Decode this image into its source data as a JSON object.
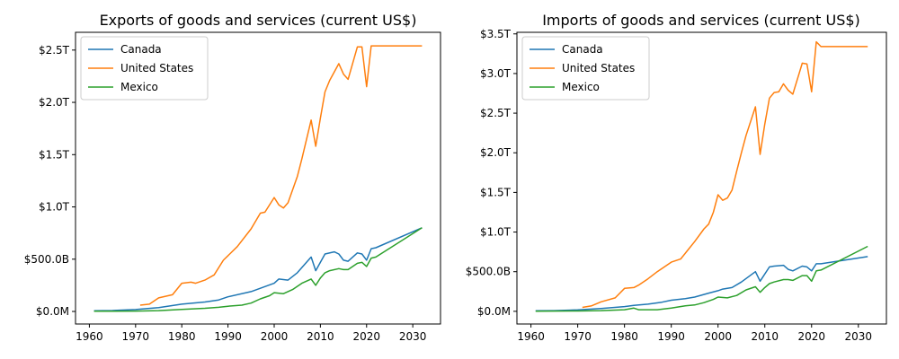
{
  "chart_data": [
    {
      "type": "line",
      "title": "Exports of goods and services (current US$)",
      "xlabel": "",
      "ylabel": "",
      "xlim": [
        1957,
        2036
      ],
      "ylim": [
        -0.12,
        2.67
      ],
      "xticks": [
        1960,
        1970,
        1980,
        1990,
        2000,
        2010,
        2020,
        2030
      ],
      "xtick_labels": [
        "1960",
        "1970",
        "1980",
        "1990",
        "2000",
        "2010",
        "2020",
        "2030"
      ],
      "yticks": [
        0,
        0.5,
        1.0,
        1.5,
        2.0,
        2.5
      ],
      "ytick_labels": [
        "$0.0M",
        "$500.0B",
        "$1.0T",
        "$1.5T",
        "$2.0T",
        "$2.5T"
      ],
      "y_unit": "trillions of US$",
      "legend_position": "top-left",
      "grid": false,
      "series": [
        {
          "name": "Canada",
          "color": "#1f77b4",
          "points": [
            [
              1961,
              0.006
            ],
            [
              1965,
              0.009
            ],
            [
              1970,
              0.018
            ],
            [
              1975,
              0.036
            ],
            [
              1980,
              0.07
            ],
            [
              1985,
              0.09
            ],
            [
              1988,
              0.11
            ],
            [
              1990,
              0.14
            ],
            [
              1995,
              0.19
            ],
            [
              2000,
              0.27
            ],
            [
              2001,
              0.31
            ],
            [
              2003,
              0.3
            ],
            [
              2005,
              0.37
            ],
            [
              2008,
              0.52
            ],
            [
              2009,
              0.39
            ],
            [
              2011,
              0.55
            ],
            [
              2013,
              0.57
            ],
            [
              2014,
              0.55
            ],
            [
              2015,
              0.49
            ],
            [
              2016,
              0.48
            ],
            [
              2018,
              0.56
            ],
            [
              2019,
              0.55
            ],
            [
              2020,
              0.49
            ],
            [
              2021,
              0.6
            ],
            [
              2022,
              0.61
            ],
            [
              2032,
              0.8
            ]
          ]
        },
        {
          "name": "United States",
          "color": "#ff7f0e",
          "points": [
            [
              1971,
              0.06
            ],
            [
              1973,
              0.07
            ],
            [
              1975,
              0.13
            ],
            [
              1978,
              0.16
            ],
            [
              1980,
              0.27
            ],
            [
              1982,
              0.28
            ],
            [
              1983,
              0.27
            ],
            [
              1985,
              0.3
            ],
            [
              1987,
              0.35
            ],
            [
              1989,
              0.49
            ],
            [
              1992,
              0.62
            ],
            [
              1995,
              0.79
            ],
            [
              1997,
              0.94
            ],
            [
              1998,
              0.95
            ],
            [
              2000,
              1.09
            ],
            [
              2001,
              1.02
            ],
            [
              2002,
              0.99
            ],
            [
              2003,
              1.04
            ],
            [
              2005,
              1.29
            ],
            [
              2006,
              1.46
            ],
            [
              2008,
              1.83
            ],
            [
              2009,
              1.58
            ],
            [
              2010,
              1.85
            ],
            [
              2011,
              2.1
            ],
            [
              2012,
              2.21
            ],
            [
              2014,
              2.37
            ],
            [
              2015,
              2.27
            ],
            [
              2016,
              2.22
            ],
            [
              2018,
              2.53
            ],
            [
              2019,
              2.53
            ],
            [
              2020,
              2.15
            ],
            [
              2021,
              2.54
            ],
            [
              2032,
              2.54
            ]
          ]
        },
        {
          "name": "Mexico",
          "color": "#2ca02c",
          "points": [
            [
              1961,
              0.002
            ],
            [
              1970,
              0.004
            ],
            [
              1975,
              0.008
            ],
            [
              1980,
              0.02
            ],
            [
              1985,
              0.03
            ],
            [
              1988,
              0.04
            ],
            [
              1990,
              0.05
            ],
            [
              1993,
              0.06
            ],
            [
              1995,
              0.08
            ],
            [
              1997,
              0.12
            ],
            [
              1999,
              0.15
            ],
            [
              2000,
              0.18
            ],
            [
              2002,
              0.17
            ],
            [
              2004,
              0.21
            ],
            [
              2006,
              0.27
            ],
            [
              2008,
              0.31
            ],
            [
              2009,
              0.25
            ],
            [
              2010,
              0.32
            ],
            [
              2011,
              0.37
            ],
            [
              2012,
              0.39
            ],
            [
              2014,
              0.41
            ],
            [
              2015,
              0.4
            ],
            [
              2016,
              0.4
            ],
            [
              2018,
              0.46
            ],
            [
              2019,
              0.47
            ],
            [
              2020,
              0.43
            ],
            [
              2021,
              0.51
            ],
            [
              2022,
              0.52
            ],
            [
              2032,
              0.8
            ]
          ]
        }
      ]
    },
    {
      "type": "line",
      "title": "Imports of goods and services (current US$)",
      "xlabel": "",
      "ylabel": "",
      "xlim": [
        1957,
        2036
      ],
      "ylim": [
        -0.16,
        3.52
      ],
      "xticks": [
        1960,
        1970,
        1980,
        1990,
        2000,
        2010,
        2020,
        2030
      ],
      "xtick_labels": [
        "1960",
        "1970",
        "1980",
        "1990",
        "2000",
        "2010",
        "2020",
        "2030"
      ],
      "yticks": [
        0,
        0.5,
        1.0,
        1.5,
        2.0,
        2.5,
        3.0,
        3.5
      ],
      "ytick_labels": [
        "$0.0M",
        "$500.0B",
        "$1.0T",
        "$1.5T",
        "$2.0T",
        "$2.5T",
        "$3.0T",
        "$3.5T"
      ],
      "y_unit": "trillions of US$",
      "legend_position": "top-left",
      "grid": false,
      "series": [
        {
          "name": "Canada",
          "color": "#1f77b4",
          "points": [
            [
              1961,
              0.006
            ],
            [
              1965,
              0.009
            ],
            [
              1970,
              0.018
            ],
            [
              1975,
              0.036
            ],
            [
              1980,
              0.06
            ],
            [
              1982,
              0.075
            ],
            [
              1985,
              0.09
            ],
            [
              1988,
              0.115
            ],
            [
              1990,
              0.14
            ],
            [
              1993,
              0.16
            ],
            [
              1995,
              0.18
            ],
            [
              1998,
              0.23
            ],
            [
              2000,
              0.26
            ],
            [
              2001,
              0.28
            ],
            [
              2003,
              0.3
            ],
            [
              2005,
              0.37
            ],
            [
              2008,
              0.5
            ],
            [
              2009,
              0.38
            ],
            [
              2011,
              0.56
            ],
            [
              2012,
              0.57
            ],
            [
              2014,
              0.58
            ],
            [
              2015,
              0.53
            ],
            [
              2016,
              0.51
            ],
            [
              2018,
              0.57
            ],
            [
              2019,
              0.56
            ],
            [
              2020,
              0.51
            ],
            [
              2021,
              0.6
            ],
            [
              2022,
              0.6
            ],
            [
              2032,
              0.69
            ]
          ]
        },
        {
          "name": "United States",
          "color": "#ff7f0e",
          "points": [
            [
              1971,
              0.05
            ],
            [
              1973,
              0.07
            ],
            [
              1975,
              0.12
            ],
            [
              1978,
              0.17
            ],
            [
              1980,
              0.29
            ],
            [
              1982,
              0.3
            ],
            [
              1983,
              0.33
            ],
            [
              1985,
              0.41
            ],
            [
              1987,
              0.5
            ],
            [
              1990,
              0.62
            ],
            [
              1992,
              0.66
            ],
            [
              1995,
              0.88
            ],
            [
              1997,
              1.04
            ],
            [
              1998,
              1.1
            ],
            [
              1999,
              1.25
            ],
            [
              2000,
              1.47
            ],
            [
              2001,
              1.4
            ],
            [
              2002,
              1.43
            ],
            [
              2003,
              1.53
            ],
            [
              2004,
              1.77
            ],
            [
              2005,
              2.0
            ],
            [
              2006,
              2.22
            ],
            [
              2008,
              2.58
            ],
            [
              2009,
              1.98
            ],
            [
              2010,
              2.36
            ],
            [
              2011,
              2.69
            ],
            [
              2012,
              2.76
            ],
            [
              2013,
              2.77
            ],
            [
              2014,
              2.87
            ],
            [
              2015,
              2.79
            ],
            [
              2016,
              2.74
            ],
            [
              2018,
              3.13
            ],
            [
              2019,
              3.12
            ],
            [
              2020,
              2.77
            ],
            [
              2021,
              3.4
            ],
            [
              2022,
              3.34
            ],
            [
              2032,
              3.34
            ]
          ]
        },
        {
          "name": "Mexico",
          "color": "#2ca02c",
          "points": [
            [
              1961,
              0.002
            ],
            [
              1970,
              0.004
            ],
            [
              1975,
              0.009
            ],
            [
              1980,
              0.02
            ],
            [
              1982,
              0.04
            ],
            [
              1983,
              0.02
            ],
            [
              1987,
              0.02
            ],
            [
              1990,
              0.04
            ],
            [
              1993,
              0.07
            ],
            [
              1995,
              0.08
            ],
            [
              1997,
              0.11
            ],
            [
              1999,
              0.15
            ],
            [
              2000,
              0.18
            ],
            [
              2002,
              0.17
            ],
            [
              2004,
              0.2
            ],
            [
              2006,
              0.27
            ],
            [
              2008,
              0.31
            ],
            [
              2009,
              0.24
            ],
            [
              2010,
              0.3
            ],
            [
              2011,
              0.35
            ],
            [
              2012,
              0.37
            ],
            [
              2014,
              0.4
            ],
            [
              2015,
              0.4
            ],
            [
              2016,
              0.39
            ],
            [
              2018,
              0.45
            ],
            [
              2019,
              0.45
            ],
            [
              2020,
              0.38
            ],
            [
              2021,
              0.51
            ],
            [
              2022,
              0.52
            ],
            [
              2032,
              0.82
            ]
          ]
        }
      ]
    }
  ]
}
